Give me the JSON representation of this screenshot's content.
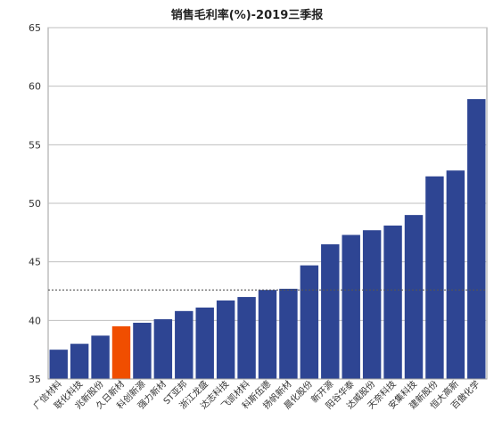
{
  "chart_data": {
    "type": "bar",
    "title": "销售毛利率(%)-2019三季报",
    "categories": [
      "广信材料",
      "联化科技",
      "兆新股份",
      "久日新材",
      "科创新源",
      "强力新材",
      "ST亚邦",
      "浙江龙盛",
      "达志科技",
      "飞凯材料",
      "科斯伍德",
      "扬帆新材",
      "晨化股份",
      "新开源",
      "阳谷华泰",
      "达威股份",
      "天奈科技",
      "安集科技",
      "建新股份",
      "恒大高新",
      "百傲化学"
    ],
    "values": [
      37.5,
      38.0,
      38.7,
      39.5,
      39.8,
      40.1,
      40.8,
      41.1,
      41.7,
      42.0,
      42.6,
      42.7,
      44.7,
      46.5,
      47.3,
      47.7,
      48.1,
      49.0,
      52.3,
      52.8,
      58.9
    ],
    "highlight_index": 3,
    "reference_line": 42.6,
    "ylim": [
      35,
      65
    ],
    "yticks": [
      35,
      40,
      45,
      50,
      55,
      60,
      65
    ],
    "xlabel": "",
    "ylabel": "",
    "grid": true,
    "colors": {
      "bar": "#2E4593",
      "highlight": "#F04E00",
      "grid": "#BFBFBF",
      "axis": "#9E9E9E",
      "reference": "#555555"
    }
  }
}
